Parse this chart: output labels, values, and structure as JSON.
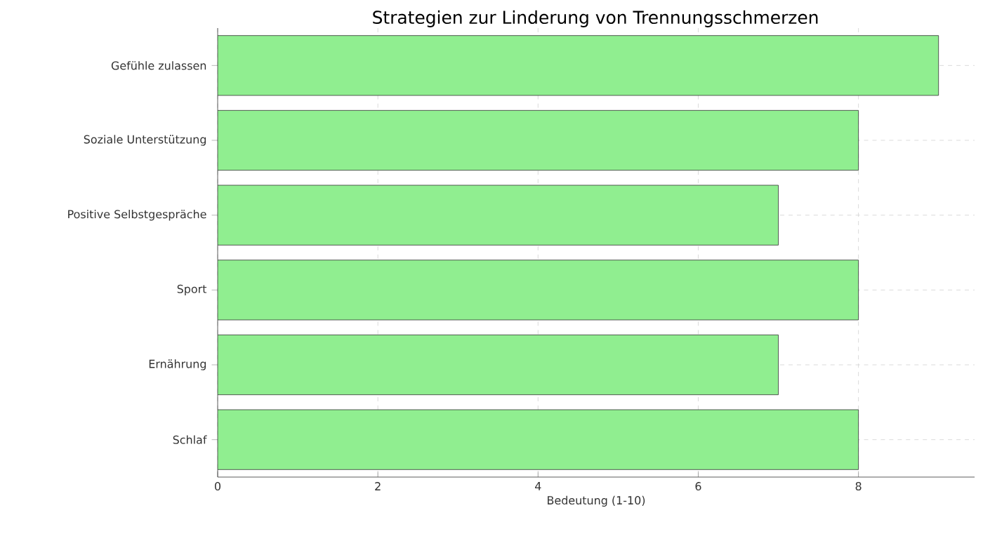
{
  "chart_data": {
    "type": "bar",
    "orientation": "horizontal",
    "title": "Strategien zur Linderung von Trennungsschmerzen",
    "xlabel": "Bedeutung (1-10)",
    "categories": [
      "Gefühle zulassen",
      "Soziale Unterstützung",
      "Positive Selbstgespräche",
      "Sport",
      "Ernährung",
      "Schlaf"
    ],
    "values": [
      9,
      8,
      7,
      8,
      7,
      8
    ],
    "color": "#90ee90",
    "xlim": [
      0,
      9.45
    ],
    "xticks": [
      0,
      2,
      4,
      6,
      8
    ],
    "grid": true
  }
}
